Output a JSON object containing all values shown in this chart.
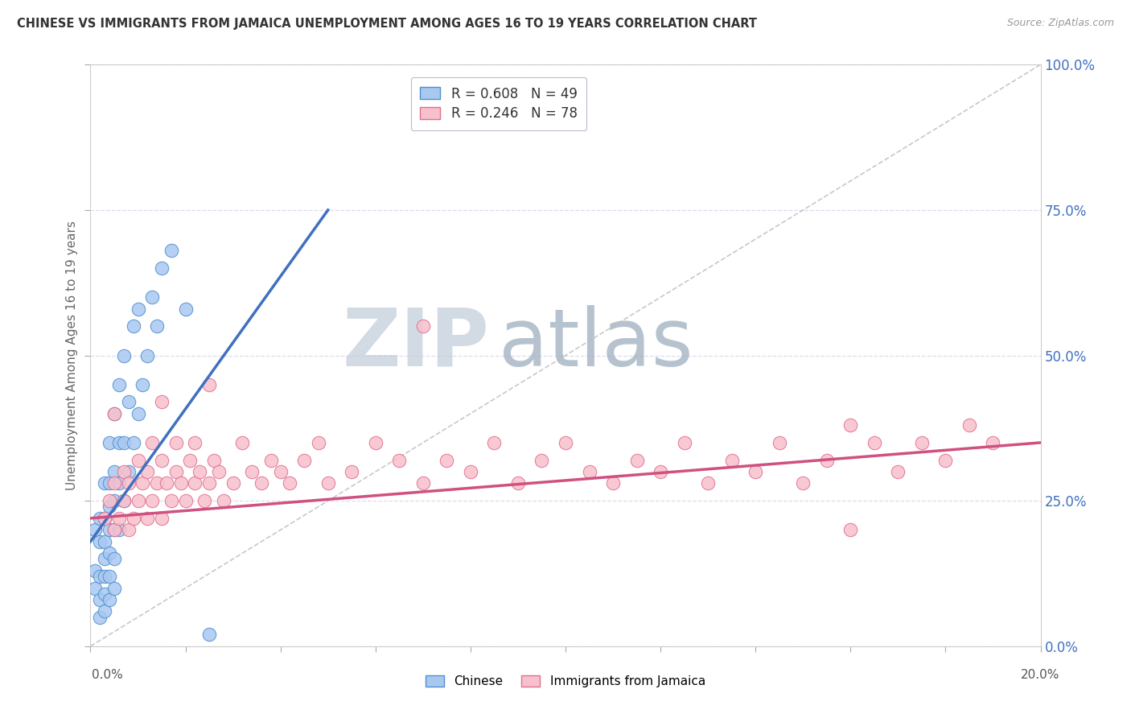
{
  "title": "CHINESE VS IMMIGRANTS FROM JAMAICA UNEMPLOYMENT AMONG AGES 16 TO 19 YEARS CORRELATION CHART",
  "source": "Source: ZipAtlas.com",
  "ylabel": "Unemployment Among Ages 16 to 19 years",
  "ytick_labels": [
    "0.0%",
    "25.0%",
    "50.0%",
    "75.0%",
    "100.0%"
  ],
  "ytick_values": [
    0.0,
    0.25,
    0.5,
    0.75,
    1.0
  ],
  "xlim": [
    0.0,
    0.2
  ],
  "ylim": [
    0.0,
    1.0
  ],
  "legend1_label": "R = 0.608   N = 49",
  "legend2_label": "R = 0.246   N = 78",
  "color_chinese_fill": "#A8C8F0",
  "color_chinese_edge": "#5090D0",
  "color_jamaica_fill": "#F8C0CC",
  "color_jamaica_edge": "#E07090",
  "color_line_chinese": "#4070C0",
  "color_line_jamaica": "#D05080",
  "color_ref_line": "#BBBBBB",
  "watermark_zip": "ZIP",
  "watermark_atlas": "atlas",
  "watermark_color_zip": "#C0CCD8",
  "watermark_color_atlas": "#98AABB",
  "chinese_x": [
    0.001,
    0.001,
    0.001,
    0.002,
    0.002,
    0.002,
    0.002,
    0.002,
    0.003,
    0.003,
    0.003,
    0.003,
    0.003,
    0.003,
    0.003,
    0.004,
    0.004,
    0.004,
    0.004,
    0.004,
    0.004,
    0.004,
    0.005,
    0.005,
    0.005,
    0.005,
    0.005,
    0.005,
    0.006,
    0.006,
    0.006,
    0.006,
    0.007,
    0.007,
    0.007,
    0.008,
    0.008,
    0.009,
    0.009,
    0.01,
    0.01,
    0.011,
    0.012,
    0.013,
    0.014,
    0.015,
    0.017,
    0.02,
    0.025
  ],
  "chinese_y": [
    0.1,
    0.13,
    0.2,
    0.05,
    0.08,
    0.12,
    0.18,
    0.22,
    0.06,
    0.09,
    0.12,
    0.15,
    0.18,
    0.22,
    0.28,
    0.08,
    0.12,
    0.16,
    0.2,
    0.24,
    0.28,
    0.35,
    0.1,
    0.15,
    0.2,
    0.25,
    0.3,
    0.4,
    0.2,
    0.28,
    0.35,
    0.45,
    0.25,
    0.35,
    0.5,
    0.3,
    0.42,
    0.35,
    0.55,
    0.4,
    0.58,
    0.45,
    0.5,
    0.6,
    0.55,
    0.65,
    0.68,
    0.58,
    0.02
  ],
  "jamaica_x": [
    0.003,
    0.004,
    0.005,
    0.005,
    0.006,
    0.007,
    0.007,
    0.008,
    0.008,
    0.009,
    0.01,
    0.01,
    0.011,
    0.012,
    0.012,
    0.013,
    0.013,
    0.014,
    0.015,
    0.015,
    0.016,
    0.017,
    0.018,
    0.018,
    0.019,
    0.02,
    0.021,
    0.022,
    0.022,
    0.023,
    0.024,
    0.025,
    0.026,
    0.027,
    0.028,
    0.03,
    0.032,
    0.034,
    0.036,
    0.038,
    0.04,
    0.042,
    0.045,
    0.048,
    0.05,
    0.055,
    0.06,
    0.065,
    0.07,
    0.075,
    0.08,
    0.085,
    0.09,
    0.095,
    0.1,
    0.105,
    0.11,
    0.115,
    0.12,
    0.125,
    0.13,
    0.135,
    0.14,
    0.145,
    0.15,
    0.155,
    0.16,
    0.165,
    0.17,
    0.175,
    0.18,
    0.185,
    0.19,
    0.005,
    0.015,
    0.025,
    0.07,
    0.16
  ],
  "jamaica_y": [
    0.22,
    0.25,
    0.2,
    0.28,
    0.22,
    0.25,
    0.3,
    0.2,
    0.28,
    0.22,
    0.25,
    0.32,
    0.28,
    0.22,
    0.3,
    0.25,
    0.35,
    0.28,
    0.22,
    0.32,
    0.28,
    0.25,
    0.3,
    0.35,
    0.28,
    0.25,
    0.32,
    0.28,
    0.35,
    0.3,
    0.25,
    0.28,
    0.32,
    0.3,
    0.25,
    0.28,
    0.35,
    0.3,
    0.28,
    0.32,
    0.3,
    0.28,
    0.32,
    0.35,
    0.28,
    0.3,
    0.35,
    0.32,
    0.28,
    0.32,
    0.3,
    0.35,
    0.28,
    0.32,
    0.35,
    0.3,
    0.28,
    0.32,
    0.3,
    0.35,
    0.28,
    0.32,
    0.3,
    0.35,
    0.28,
    0.32,
    0.38,
    0.35,
    0.3,
    0.35,
    0.32,
    0.38,
    0.35,
    0.4,
    0.42,
    0.45,
    0.55,
    0.2
  ],
  "line_ch_x0": 0.0,
  "line_ch_y0": 0.18,
  "line_ch_x1": 0.05,
  "line_ch_y1": 0.75,
  "line_ja_x0": 0.0,
  "line_ja_y0": 0.22,
  "line_ja_x1": 0.2,
  "line_ja_y1": 0.35,
  "ref_line_x0": 0.0,
  "ref_line_y0": 0.0,
  "ref_line_x1": 0.2,
  "ref_line_y1": 1.0
}
